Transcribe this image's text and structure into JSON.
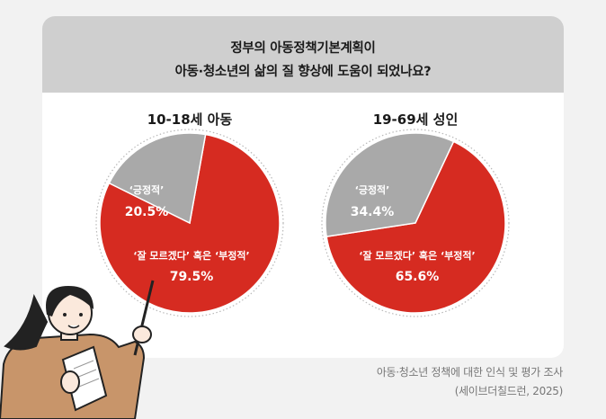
{
  "title": {
    "line1": "정부의 아동정책기본계획이",
    "line2": "아동·청소년의 삶의 질 향상에 도움이 되었나요?"
  },
  "colors": {
    "negative": "#d62b21",
    "positive": "#a9a9a9",
    "header_bg": "#cfcfcf"
  },
  "chart_data": [
    {
      "type": "pie",
      "title": "10-18세 아동",
      "slices": [
        {
          "label": "‘잘 모르겠다’ 혹은 ‘부정적’",
          "value": 79.5,
          "value_label": "79.5%"
        },
        {
          "label": "‘긍정적’",
          "value": 20.5,
          "value_label": "20.5%"
        }
      ]
    },
    {
      "type": "pie",
      "title": "19-69세 성인",
      "slices": [
        {
          "label": "‘잘 모르겠다’ 혹은 ‘부정적’",
          "value": 65.6,
          "value_label": "65.6%"
        },
        {
          "label": "‘긍정적’",
          "value": 34.4,
          "value_label": "34.4%"
        }
      ]
    }
  ],
  "source": {
    "line1": "아동·청소년 정책에 대한 인식 및 평가 조사",
    "line2": "(세이브더칠드런, 2025)"
  },
  "illustration": {
    "name": "woman-holding-paper-and-pointer"
  }
}
